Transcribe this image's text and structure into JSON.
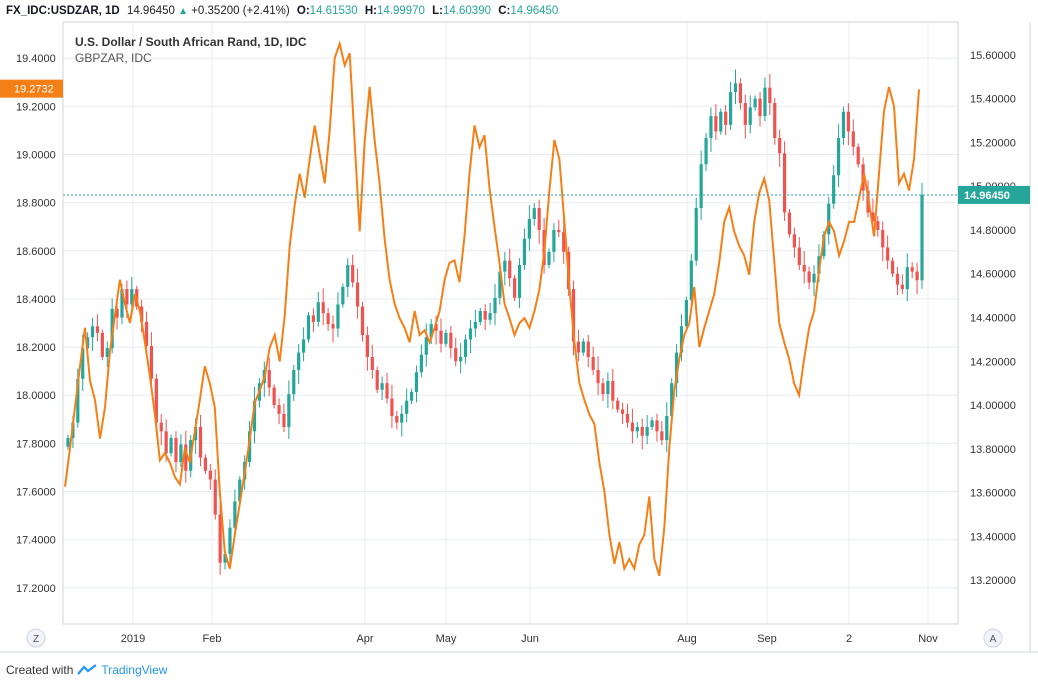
{
  "header": {
    "symbol": "FX_IDC:USDZAR, 1D",
    "last": "14.96450",
    "change": "+0.35200 (+2.41%)",
    "o_label": "O:",
    "o_val": "14.61530",
    "h_label": "H:",
    "h_val": "14.99970",
    "l_label": "L:",
    "l_val": "14.60390",
    "c_label": "C:",
    "c_val": "14.96450"
  },
  "footer": {
    "created": "Created with",
    "brand": "TradingView"
  },
  "colors": {
    "up": "#26a69a",
    "down": "#ef5350",
    "line": "#f57f17",
    "last_price": "#26a69a",
    "line_label": "#f57f17",
    "grid": "#e8ecf0"
  },
  "icons": {
    "axis_left": "Z",
    "axis_right": "A"
  },
  "chart_data": [
    {
      "type": "candlestick",
      "title": "U.S. Dollar / South African Rand, 1D, IDC",
      "series_name": "USDZAR",
      "axis": "right",
      "ylim": [
        13.0,
        15.75
      ],
      "ticks": [
        "15.60000",
        "15.40000",
        "15.20000",
        "15.00000",
        "14.80000",
        "14.60000",
        "14.40000",
        "14.20000",
        "14.00000",
        "13.80000",
        "13.60000",
        "13.40000",
        "13.20000"
      ],
      "last_value_label": "14.96450",
      "closes": [
        13.85,
        13.92,
        14.12,
        14.26,
        14.31,
        14.36,
        14.33,
        14.22,
        14.26,
        14.44,
        14.4,
        14.53,
        14.46,
        14.53,
        14.45,
        14.38,
        14.27,
        14.12,
        13.92,
        13.88,
        13.78,
        13.85,
        13.74,
        13.82,
        13.7,
        13.84,
        13.9,
        13.76,
        13.7,
        13.66,
        13.5,
        13.28,
        13.32,
        13.44,
        13.56,
        13.66,
        13.74,
        13.88,
        14.02,
        14.1,
        14.16,
        14.08,
        14.0,
        13.96,
        13.9,
        14.05,
        14.16,
        14.24,
        14.3,
        14.41,
        14.38,
        14.47,
        14.42,
        14.37,
        14.35,
        14.46,
        14.54,
        14.64,
        14.56,
        14.45,
        14.32,
        14.22,
        14.16,
        14.07,
        14.1,
        14.03,
        13.95,
        13.92,
        13.96,
        14.02,
        14.06,
        14.15,
        14.23,
        14.31,
        14.37,
        14.34,
        14.28,
        14.33,
        14.26,
        14.2,
        14.22,
        14.3,
        14.35,
        14.38,
        14.43,
        14.39,
        14.42,
        14.49,
        14.61,
        14.66,
        14.58,
        14.49,
        14.64,
        14.76,
        14.85,
        14.9,
        14.8,
        14.64,
        14.7,
        14.8,
        14.79,
        14.7,
        14.53,
        14.29,
        14.24,
        14.29,
        14.22,
        14.16,
        14.1,
        14.05,
        14.11,
        14.02,
        13.98,
        13.96,
        13.92,
        13.88,
        13.9,
        13.86,
        13.9,
        13.93,
        13.88,
        13.84,
        13.95,
        14.1,
        14.24,
        14.36,
        14.48,
        14.66,
        14.9,
        15.1,
        15.22,
        15.32,
        15.25,
        15.34,
        15.28,
        15.43,
        15.47,
        15.38,
        15.28,
        15.36,
        15.4,
        15.32,
        15.45,
        15.38,
        15.22,
        15.15,
        14.88,
        14.78,
        14.72,
        14.64,
        14.61,
        14.56,
        14.6,
        14.68,
        14.78,
        14.92,
        15.05,
        15.22,
        15.34,
        15.25,
        15.18,
        15.1,
        14.98,
        14.88,
        14.84,
        14.8,
        14.72,
        14.66,
        14.6,
        14.55,
        14.53,
        14.63,
        14.61,
        14.57,
        14.96
      ]
    },
    {
      "type": "line",
      "series_name": "GBPZAR, IDC",
      "axis": "left",
      "ylim": [
        17.05,
        19.55
      ],
      "ticks": [
        "19.4000",
        "19.2000",
        "19.0000",
        "18.8000",
        "18.6000",
        "18.4000",
        "18.2000",
        "18.0000",
        "17.8000",
        "17.6000",
        "17.4000",
        "17.2000"
      ],
      "last_value_label": "19.2732",
      "x_labels": [
        "2019",
        "Feb",
        "Apr",
        "May",
        "Jun",
        "Aug",
        "Sep",
        "2",
        "Nov"
      ],
      "values": [
        17.62,
        17.78,
        17.95,
        18.12,
        18.28,
        18.06,
        17.98,
        17.82,
        17.95,
        18.18,
        18.33,
        18.48,
        18.38,
        18.3,
        18.42,
        18.35,
        18.22,
        18.08,
        17.92,
        17.73,
        17.76,
        17.72,
        17.66,
        17.63,
        17.78,
        17.72,
        17.85,
        17.98,
        18.12,
        18.05,
        17.95,
        17.6,
        17.35,
        17.28,
        17.42,
        17.55,
        17.68,
        17.82,
        17.97,
        18.02,
        18.08,
        18.2,
        18.25,
        18.14,
        18.33,
        18.62,
        18.79,
        18.92,
        18.82,
        18.98,
        19.12,
        19.0,
        18.88,
        19.1,
        19.4,
        19.46,
        19.37,
        19.42,
        19.05,
        18.68,
        19.05,
        19.28,
        19.06,
        18.88,
        18.65,
        18.48,
        18.38,
        18.32,
        18.28,
        18.22,
        18.35,
        18.25,
        18.27,
        18.22,
        18.28,
        18.35,
        18.48,
        18.55,
        18.56,
        18.47,
        18.66,
        18.92,
        19.12,
        19.03,
        19.08,
        18.86,
        18.7,
        18.55,
        18.38,
        18.32,
        18.25,
        18.3,
        18.32,
        18.28,
        18.35,
        18.44,
        18.6,
        18.85,
        19.06,
        18.98,
        18.72,
        18.45,
        18.22,
        18.05,
        17.98,
        17.92,
        17.88,
        17.72,
        17.6,
        17.42,
        17.3,
        17.39,
        17.28,
        17.32,
        17.28,
        17.38,
        17.42,
        17.58,
        17.32,
        17.25,
        17.45,
        17.78,
        18.02,
        18.15,
        18.25,
        18.3,
        18.45,
        18.2,
        18.28,
        18.35,
        18.42,
        18.55,
        18.72,
        18.78,
        18.68,
        18.62,
        18.58,
        18.5,
        18.72,
        18.84,
        18.9,
        18.81,
        18.56,
        18.3,
        18.22,
        18.15,
        18.05,
        18.0,
        18.15,
        18.28,
        18.35,
        18.52,
        18.66,
        18.72,
        18.68,
        18.58,
        18.64,
        18.72,
        18.72,
        18.82,
        18.92,
        18.8,
        18.66,
        18.92,
        19.18,
        19.28,
        19.2,
        18.88,
        18.92,
        18.85,
        18.98,
        19.27
      ]
    }
  ]
}
